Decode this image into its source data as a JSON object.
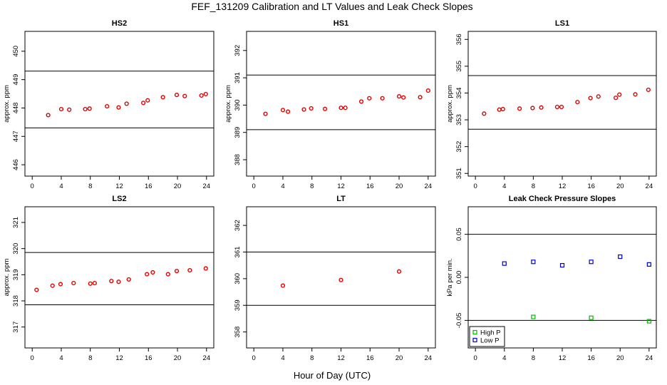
{
  "figure": {
    "title": "FEF_131209  Calibration and LT Values and Leak Check Slopes",
    "xlabel": "Hour of Day (UTC)"
  },
  "chart_data": [
    {
      "type": "scatter",
      "title": "HS2",
      "ylabel": "approx. ppm",
      "xlim": [
        -1,
        25
      ],
      "ylim": [
        445.6,
        450.7
      ],
      "xticks": [
        0,
        4,
        8,
        12,
        16,
        20,
        24
      ],
      "yticks": [
        446,
        447,
        448,
        449,
        450
      ],
      "hlines": [
        449.3,
        447.3
      ],
      "marker_color": "#e00000",
      "series": [
        {
          "points": [
            [
              2.2,
              447.75
            ],
            [
              4.0,
              447.96
            ],
            [
              5.1,
              447.94
            ],
            [
              7.3,
              447.96
            ],
            [
              7.9,
              447.98
            ],
            [
              10.3,
              448.06
            ],
            [
              11.9,
              448.02
            ],
            [
              13.0,
              448.15
            ],
            [
              15.3,
              448.18
            ],
            [
              15.9,
              448.27
            ],
            [
              18.0,
              448.38
            ],
            [
              19.9,
              448.46
            ],
            [
              21.0,
              448.42
            ],
            [
              23.3,
              448.44
            ],
            [
              23.9,
              448.49
            ]
          ]
        }
      ]
    },
    {
      "type": "scatter",
      "title": "HS1",
      "ylabel": "approx. ppm",
      "xlim": [
        -1,
        25
      ],
      "ylim": [
        387.4,
        392.7
      ],
      "xticks": [
        0,
        4,
        8,
        12,
        16,
        20,
        24
      ],
      "yticks": [
        388,
        389,
        390,
        391,
        392
      ],
      "hlines": [
        391.1,
        389.1
      ],
      "marker_color": "#e00000",
      "series": [
        {
          "points": [
            [
              1.6,
              389.68
            ],
            [
              4.0,
              389.82
            ],
            [
              4.7,
              389.76
            ],
            [
              6.9,
              389.84
            ],
            [
              7.9,
              389.88
            ],
            [
              9.8,
              389.86
            ],
            [
              12.0,
              389.9
            ],
            [
              12.6,
              389.9
            ],
            [
              14.8,
              390.13
            ],
            [
              15.9,
              390.25
            ],
            [
              17.7,
              390.25
            ],
            [
              20.0,
              390.32
            ],
            [
              20.6,
              390.28
            ],
            [
              22.9,
              390.29
            ],
            [
              24.0,
              390.53
            ]
          ]
        }
      ]
    },
    {
      "type": "scatter",
      "title": "LS1",
      "ylabel": "approx. ppm",
      "xlim": [
        -1,
        25
      ],
      "ylim": [
        350.9,
        356.3
      ],
      "xticks": [
        0,
        4,
        8,
        12,
        16,
        20,
        24
      ],
      "yticks": [
        351,
        352,
        353,
        354,
        355,
        356
      ],
      "hlines": [
        354.65,
        352.65
      ],
      "marker_color": "#e00000",
      "series": [
        {
          "points": [
            [
              1.2,
              353.23
            ],
            [
              3.3,
              353.38
            ],
            [
              3.8,
              353.4
            ],
            [
              6.1,
              353.42
            ],
            [
              7.9,
              353.44
            ],
            [
              9.1,
              353.46
            ],
            [
              11.3,
              353.48
            ],
            [
              11.9,
              353.48
            ],
            [
              14.1,
              353.66
            ],
            [
              15.9,
              353.81
            ],
            [
              17.0,
              353.87
            ],
            [
              19.4,
              353.82
            ],
            [
              19.9,
              353.94
            ],
            [
              22.1,
              353.95
            ],
            [
              23.9,
              354.12
            ]
          ]
        }
      ]
    },
    {
      "type": "scatter",
      "title": "LS2",
      "ylabel": "approx. ppm",
      "xlim": [
        -1,
        25
      ],
      "ylim": [
        316.2,
        321.6
      ],
      "xticks": [
        0,
        4,
        8,
        12,
        16,
        20,
        24
      ],
      "yticks": [
        317,
        318,
        319,
        320,
        321
      ],
      "hlines": [
        319.85,
        317.85
      ],
      "marker_color": "#e00000",
      "series": [
        {
          "points": [
            [
              0.6,
              318.42
            ],
            [
              2.8,
              318.58
            ],
            [
              3.9,
              318.64
            ],
            [
              5.7,
              318.68
            ],
            [
              8.0,
              318.66
            ],
            [
              8.6,
              318.68
            ],
            [
              10.9,
              318.76
            ],
            [
              11.9,
              318.73
            ],
            [
              13.3,
              318.82
            ],
            [
              15.8,
              319.02
            ],
            [
              16.6,
              319.09
            ],
            [
              18.7,
              319.02
            ],
            [
              19.9,
              319.14
            ],
            [
              21.7,
              319.17
            ],
            [
              23.9,
              319.24
            ]
          ]
        }
      ]
    },
    {
      "type": "scatter",
      "title": "LT",
      "ylabel": "",
      "xlim": [
        -1,
        25
      ],
      "ylim": [
        357.4,
        362.7
      ],
      "xticks": [
        0,
        4,
        8,
        12,
        16,
        20,
        24
      ],
      "yticks": [
        358,
        359,
        360,
        361,
        362
      ],
      "hlines": [
        361.0,
        359.0
      ],
      "marker_color": "#e00000",
      "series": [
        {
          "points": [
            [
              4.0,
              359.74
            ],
            [
              12.0,
              359.95
            ],
            [
              20.0,
              360.27
            ]
          ]
        }
      ]
    },
    {
      "type": "scatter",
      "title": "Leak Check Pressure Slopes",
      "ylabel": "kPa per min.",
      "xlim": [
        -1,
        25
      ],
      "ylim": [
        -0.082,
        0.082
      ],
      "xticks": [
        0,
        4,
        8,
        12,
        16,
        20,
        24
      ],
      "yticks": [
        -0.05,
        0.0,
        0.05
      ],
      "ytick_labels": [
        "-0.05",
        "0.00",
        "0.05"
      ],
      "hlines": [
        0.05,
        -0.05
      ],
      "legend": "bottom-left",
      "series": [
        {
          "name": "High P",
          "color": "#00bb00",
          "points": [
            [
              8.0,
              -0.046
            ],
            [
              16.0,
              -0.047
            ],
            [
              24.0,
              -0.051
            ]
          ]
        },
        {
          "name": "Low P",
          "color": "#0000dd",
          "points": [
            [
              4.0,
              0.016
            ],
            [
              8.0,
              0.018
            ],
            [
              12.0,
              0.014
            ],
            [
              16.0,
              0.018
            ],
            [
              20.0,
              0.024
            ],
            [
              24.0,
              0.015
            ]
          ]
        }
      ]
    }
  ]
}
